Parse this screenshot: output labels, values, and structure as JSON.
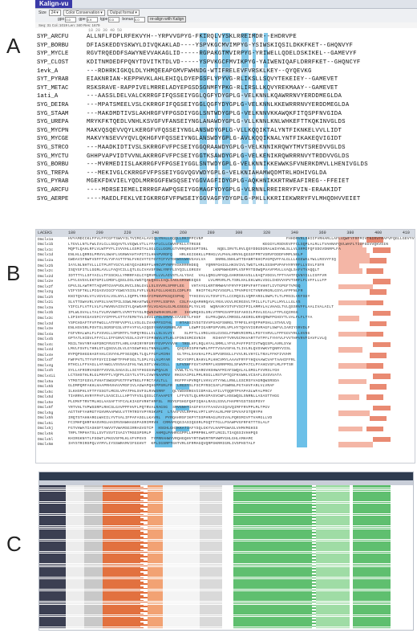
{
  "panel_labels": [
    "A",
    "B",
    "C"
  ],
  "panelA": {
    "app_name": "Kalign-vu",
    "toolbar": {
      "size_label": "Size",
      "size_value": "24",
      "color_label": "Color",
      "color_value": "Conservation",
      "output_label": "Output format"
    },
    "params": {
      "gpo_label": "gpo",
      "gpo_value": "0.0",
      "gpe_label": "gpe",
      "gpe_value": "0.9",
      "tgpe_label": "tgpe",
      "tgpe_value": "0.0",
      "bonus_label": "bonus",
      "bonus_value": "0.0",
      "realign_button": "re-align with Kalign"
    },
    "status": "Seq: 31  Col.:1019  Len: 340  Res: 1679",
    "ruler": "       10        20        30        40        50",
    "rows": [
      {
        "name": "SYP_ARCFU",
        "seq": "ALLNFLFDPLRFEKVYH--YRPVVGPYG-FKIRQLVYSKLRREIMDR--EHDRVPE"
      },
      {
        "name": "SYP_BORBU",
        "seq": "DFIASKEDDYSKWYLDIVQKAKLAD----YSPVKGCMVIMPYG-YSIWSKIQSILDKKFKET--GHQNVYF"
      },
      {
        "name": "SYP_MYCLE",
        "seq": "RGVTRQEDDFSAWYNEVVAKAGLID-----RGPAKGTMVIRPYG-YRIWELLQDELDSKIKEL--GAMEVYF"
      },
      {
        "name": "SYP_CLOST",
        "seq": "KDITNMDEDFPQNYTDVITKTDLVD-----YSPVKGCFMVIKPYG-YAIWENIQAFLDRRFKET--GHQNCYF"
      },
      {
        "name": "1evk_A",
        "seq": "---RDHRKIGKQLDLYHMQEEAPGMVFWHNDG-WTIFRELEVFVRSKLKEY--QYQEVKG"
      },
      {
        "name": "SYT_PYRAB",
        "seq": "EIAKNRIAN-KEPPHVKLAHLEHIQLDYEPGSFLYPYVG-RLIKSLLSQVYTEKEIEY--GAMEVET"
      },
      {
        "name": "SYT_METAC",
        "seq": "RSKSRAVE-RAPPIVELMRRELADYEPGSDSGNMFYPKG-RLIRSLLKQVYREKMAAY--GAMEVET"
      },
      {
        "name": "1ati_A",
        "seq": "---AASSLDELVALCKRRGFIFQSSEIYGGLQGFYDYGPLG-VELKNNLKQAWRRNVYERDDMEGLDA"
      },
      {
        "name": "SYG_DEIRA",
        "seq": "---MPATSMEELVSLCKRRGFIFQGSEIYGGLQGFYDYGPLG-VELKNNLKKEWRRRNVYERDDMEGLDA"
      },
      {
        "name": "SYG_STAAM",
        "seq": "---MAKDMDTIVSLAKHRGFVFPGSDIYGGLSNTWDYGPLG-VELKNNVKKAWQKFITQSPFNVGIDA"
      },
      {
        "name": "SYG_UREPA",
        "seq": "MRYKFKTQEDLVNHLKSVGFVFANSEIYNGLANAWDYGPLG-VLLKNNLKNLWHKEFTTKQKINVGLDS"
      },
      {
        "name": "SYG_MYCPN",
        "seq": "MAKVQSQEVVQYLKERGFVFQSSEIYNGLANSWDYGPLG-VLLKQQIKTALYNTFIKNKELVVLLIDT"
      },
      {
        "name": "SYG_MYCGE",
        "seq": "MAKVYNSEVVYQVLQKHGFVFQSSEIYNGLANSWDYGPLG-AVLKQQIKNALYNTFIKAKEQVIGIDT"
      },
      {
        "name": "SYG_STRCO",
        "seq": "---MAADKIDTIVSLSKRRGFVFPCSEIYGGQRAAWDYGPLG-VELKNNIKRQWYTMVTSREDVVGLDS"
      },
      {
        "name": "SYG_MYCTU",
        "seq": "GHHPVAPVIDTVVNLAKRRGFVFPCSEIYGGTKSAWDYGPLG-VELKENIKRQWRRRNVYTRDDVVGLDS"
      },
      {
        "name": "SYG_BORBU",
        "seq": "---MVRMEDIISLAKRRGFVFPGSEIYGGLSNTWDYGPLG-VELKNNIKKEWWKSFVNERKDMVLLHENIVGLDS"
      },
      {
        "name": "SYG_TREPA",
        "seq": "---MEKIVGLCKRRGFVFPSSEIYGGVQGVWDYGPLG-VELKNIAHAMWQDMTRLHDHIVGLDA"
      },
      {
        "name": "SYG_PYRAB",
        "seq": "MGEKFDKVIELYQDLMRRGGFEWSQSEIYGGVAGFIDYGPLG-AQKHNIKKRTRWEAFIREG--FFEIET"
      },
      {
        "name": "SYG_ARCFU",
        "seq": "----MDRSEIEMELIRRRGFAWPQSEIYGGMAGFYDYGPLG-VLRNNLRREIRRYFVIN-ERAAKIDT"
      },
      {
        "name": "SYG_AERPE",
        "seq": "----MAEDLFEKLVEIGKRRGFVFPWSEIYGGVAGFYDYGPLG-PHLLKKRIIEKWRRYFVLMHQDHVVEIET"
      }
    ]
  },
  "panelB": {
    "header_label": "LACEKS",
    "ticks": [
      "180",
      "200",
      "220",
      "240",
      "260",
      "280",
      "300",
      "320",
      "340",
      "360",
      "380",
      "400",
      "410"
    ],
    "rows": [
      {
        "name": "Dmclx1a",
        "seq": "HVYAMDCCKLFFVLFFCGFTSWVYILTVIMCALAVIQLYRALLGQQLLRKIPPCVNP                                   FHHDRVRLSHIIFVRHARLLAFLVQWFYFRFMIVTNIRVFMAFVFQGLLGEVYVGH"
      },
      {
        "name": "Dmclx1b",
        "seq": "LTGVLLNTLFWLIVLCLLSGQAVTLVGQWLVTLLYFAFLCLLCWVHFKLLATRGSE                          KEGGYLRSDVEVFFCLSQPLALRLLTVAHNAFQVLWAFLTIIFGGVVQKVSIN"
      },
      {
        "name": "Dmclx1c",
        "seq": "MQPTLQAHLRFLVLWTPYFLIVVVHLLGSMITALSGLCLLGGRLGTVRRQRGSGPTSNL    NQELIRVTLRVLQSYDDGDGRALWIHYWLSLLVLSRMIFQFSDGVDNRPLFA"
      },
      {
        "name": "Dmclx1d",
        "seq": "ENLHLLQRRSLPRVVLSWAFLVGRWVAHTAPITILHHAPVRDFQ   HRLKGIGKKLLPRHGLVLPHALHRVHLQGSSFPRTVSRVFDDDFHMPLNGLP"
      },
      {
        "name": "Dmclx2a",
        "seq": "GWDAVIFNWFVSFFTVLYVFAVTTFNLFVKCVYTITGYTCFYVTDGWSVWHVGAVLVA    SNRNLSNHLWTTDANRTKHCPVGPQVFFALGLLLKGEWALYWLLRSVYFIQ"
      },
      {
        "name": "Dmclx2b",
        "seq": "IAYLNLNHTVLLLITPLRTYGCYLHGYQIAGRSFFLHRCVPYNPFHSKRRRHDEQ   YQRRFGHIGLHKSVIVLTWGTLARLSSSHPVPAFHYRYRFLLVSVLFSFR"
      },
      {
        "name": "Dmclx2c",
        "seq": "ISQYGFITLLGGRLAVLLFAQYCILLQTLGLCVAVSFSWLYRFFLSYQILLGRGSV     LKNPNWHGRPLVSFMYTDSWQPVAVFMVLLVAQLSAFVTVAQQLT"
      },
      {
        "name": "Dmclx2d",
        "seq": "IDTTTYLLSFYAILLTFSSCKLLYMRRFAGLCYQRVMLLVLAIVSTLALYSAC  VALLQRGLRFGQLGHKRSKAVGLLEAQTVDGVLTPTYAHTFQVNYILLISFFVR"
      },
      {
        "name": "Dmclx2e",
        "seq": "LPYLGVGVLEKTGPILGMDFLQSGLDSLVWGTQALQSGLIAQLIAGLGRSWEEQGS   LVLMRVRLPLTSRLHALEHLWHLVSGLIHDVVAPVTSRFLFLVFFLLLFP"
      },
      {
        "name": "Dmclx2f",
        "seq": "GPVLSLAWTMTTAQVMTGVAPVDLRVCLSNLGVLLSLSVVRLSPRFLEG   VHTAYGLKRTRMWHVYFRYFPIRPVFHFTVHHTLIVTGPGFTVMSQ"
      },
      {
        "name": "Dmclx2g",
        "seq": "VIFYSFTKLLPIGASVIGCFYGWGYSISLFVFLVLRLFGLLKHGILCDPLPS  RHIFTKLPGYVSGPLLTPVHPGYCTVNRVRGRLGSYLAFPFNLFR"
      },
      {
        "name": "Dmclx2h",
        "seq": "KNITQVAKLVYLVGVIALVSLNYLLIQPPLYRDAYIPNNVPKSQISPHQ  TYHISVLVLTDVFITLLCCRQSILVQMFARSLSWPLTLTLPRSILVEFSGY"
      },
      {
        "name": "Dmclx2i",
        "seq": "SLVTTSWAVRLVVPSLVAKTPILSSWLMKAHTWGLYYPFLSSFRA  CSLFAAQAMHRQAVLYNVLVGVLRCRGSVLTPILLFLTLPLLMYLLLGLVS"
      },
      {
        "name": "Dmclx3a",
        "seq": "YIFCLFLVTFLVLFLFWVNVAISVIYLQAWGAMYVLVGAGALGLMLGSGGLPLYVLVG  WQRAVKYSTVFVSCFPILAMMVLALVHAGLTVLQSSRVFFLAALIVALAILT"
      },
      {
        "name": "Dmclx3b",
        "seq": "IPLWLSVALLTALTVLRVVWRTLVVMTTVYGLRQWNIWRHKSRLHR   IHCWRQHSLSRLVTRPGSAPPIGFAHSILPSVLSIALLFTPLGQIRGG"
      },
      {
        "name": "Dmclx3c",
        "seq": "LIPIHYHCGAVSFCYYIPFPLGTTATEMVTVLIHVGLYGLIRVVLVAAHEYLFHSF  GLPRLQWVLCMRSGLAKGRSLKRVQRWFPGHSYTLVALFLFLTYA"
      },
      {
        "name": "Dmclx3d",
        "seq": "YSPCHSAFTFVFFWGLLATFRFVVPYLLVSLGLIVARPFSIFHL   RTASSIVSGTSVVPSAGFSNRGLTFMFGLHYQFPHPSHLLSTHVLVQ"
      },
      {
        "name": "Dmclx3e",
        "seq": "ENLHSVSRLPSVTSLSGRSFGSLVFFAYFVLAIQGDYAHVVGRHRLAR   LGWPFIGARPSPVVRLVPLHYTQVVVIGRVMAGFLSWFVLIARIYSRVDLF"
      },
      {
        "name": "Dmclx4a",
        "seq": "FGFVRALWALFLFVSVGLLSPSMTFLTHPQYRGLLILLSLVLVYI    SLPFTLLVRGLHSLGVSGLFPWRVRIRMLLPSYYARVLLFPFGGVYRLLHVHG"
      },
      {
        "name": "Dmclx4b",
        "seq": "GPTATLHIDVLFFYCLLIFFGRVCYGSLAIVFYIFMSWVLVTLKLVFDNIGMCGVNIH   RIHHYFTVRVGCMAVARTTVTPFLTYHYVLFVVTHPVRVFIAVFLVLQ"
      },
      {
        "name": "Dmclx4c",
        "seq": "MSILTHVYRFAHFDRCFRVSTFLHRLVARIRYRFSRYFEVPVYVVH  TRSLHFLRQLHYALSMMLLYFVLPAFFPSTIVTWQGSPLAVRLSYW"
      },
      {
        "name": "Dmclx4d",
        "seq": "LMVLFSVFLTHRLSTLQSGVLDLVLGYSGWFHGLTNNALLHFL   QSQSRISPHYWRLFPTTVSAVSFHLTLIVLRLQVSVWKVTQNRYVISL"
      },
      {
        "name": "Dmclx4e",
        "seq": "RYPQPSHGGHASFAHLCSVYHLPFSGSQRLTLQLFFGFLMIRH   GLTPALSAVHALFPLSPVSRSGLLFVVLRLVHYCLTNVLFFKFIVVHM"
      },
      {
        "name": "Dmclx4f",
        "seq": "FWFPVTLTTYVFFSYIIIHWFTFPHFSGLTLSPLYGLALMYAR   MCAYSPFLRAHVLPLHHCVMYLAAAVFRYFYHQVAAWCVAFTAAHIFFRL"
      },
      {
        "name": "Dmclx4g",
        "seq": "RTHCLLFFVAGLLAFAWGLVSVSAAIFHLYWLSSTLVWLCGLL   LFVSHFFGVTAPRPFLHSRRPMSLSFWVPATCLPYAHGVSFLMLFPTSR"
      },
      {
        "name": "Dmclx4h",
        "seq": "SYLLAFRSRVAGDYFVSVSLSAGAILLSCYFHGGSSWPQALN   VVWLTLYLTGARGVHSHWAFMIAFSWQALALGMGLFVVRSLYGH"
      },
      {
        "name": "Dmclx4ii",
        "seq": "LCTSHSTHLRLGLPRYPTLYQFPLCGYTLVTFLCVWYNAAPEV  RKGVAIPGLPMLRSGLLRSTVPTQIFKVWHLVCSAFLSVSVVATA"
      },
      {
        "name": "Dmclx5a",
        "seq": "YTMSTIFGSVLFVHATSWGGPVGTFFWTNGLFFRCTAVLTLL   RGFPFAPVRQFLVHVLVTYYWLLRNLLGSCRSYVAGRQWSRSDA"
      },
      {
        "name": "Dmclx5b",
        "seq": "GLDMPQMFAKHLHAAPRHVHAVVMSFIVLAGWAPQHGPPSRLFR  LRGSYSLFSCPYRSCSAFLPSWRNLPGTAHVFARLVLVRAF"
      },
      {
        "name": "Dmclx5c",
        "seq": "ILKHSPHLVFTFYSSGTLMGSLVPATPHLSVFSLRVWSRRF   QLYWSHHRGVIIDPASLAFILVTQQRTPVAPASLWFALPRCY"
      },
      {
        "name": "Dmclx5d",
        "seq": "TIARRVLHVRYFPAFLSASCILLLHPTYFVSLQSSLCTAAAPIT  LFFVGTLQLHMASPASVCWFLHSGWQSLSNRNLLASASTTHGG"
      },
      {
        "name": "Dmclx5e",
        "seq": "PLGMVFTRVTMLHGLAASAFTYFCALKIAGFVRHTHRFSL  RSYGPSHGFQHFIQHALRASLSSVLFHAPRYGSTSGGPSVY"
      },
      {
        "name": "Dmclx5f",
        "seq": "YRTVHLTVPWSSRPLRHCSLGAVPPFHVFLPQTRVALRAGSG  SRVGNHTIAGFHYAYFAAGVAIQAVQIMFFRVPPLMLTPGV"
      },
      {
        "name": "Dmclx5g",
        "seq": "AGTTHFYAHMGTYGHVMAAPWVLVTTMTRSYVPYRSKVPI  LTAAFVVLRPPHLVPTLVPYALRLPRFIPVVAFSTQRYPH"
      },
      {
        "name": "Dmclx5h",
        "seq": "IRQTSTAHHARGLWHIILYVTVALIFPAFASGLLKAVRL  PYRQAHRSFIKPYTSSPHRAGLRVIVALPQRSMIVFTVAMGLLVD"
      },
      {
        "name": "Dmclx5i",
        "seq": "FCIMHFQHRFHASVRGLHAIRVSHWHAGGPASRIMRVH  CRMAPGQGIASIQGSRLPGQTTTGLLPSAWPVGFRFKTTTSLALF"
      },
      {
        "name": "Dmclx5j",
        "seq": "FGTVHWATIASHSFTAWVVTVWAMSGIRRAGVGTCP  HSGHLGHIKKATIAFYSQLGKYVLHAPPGWASLVHMVMGHSS"
      },
      {
        "name": "Dmclx5k",
        "seq": "TRPLTMPHATSLLSVTVSVTIVAIYTMSGSPSMLP  AHMQLPAHRGGPPLLRPMPRKLAMTLRGILTIAQSSIVHHPQS"
      },
      {
        "name": "Dmclx5l",
        "seq": "KHIRGKNYTLFSGWTLPKGVSFMLKLVFVPGVS  TYPRRAHWYVRQHGQHVYRTGWGRTRPVWMYGHLGHLAMHAMC"
      },
      {
        "name": "Dmclx5m",
        "seq": "IHYSTRIRSPQLVYMYLIYSSWRAMVIFGGHVT  KPLIGSRPTGHTVRLGFRMAGQVQRPSKRRIGRLIVSPHSTALF"
      }
    ]
  }
}
